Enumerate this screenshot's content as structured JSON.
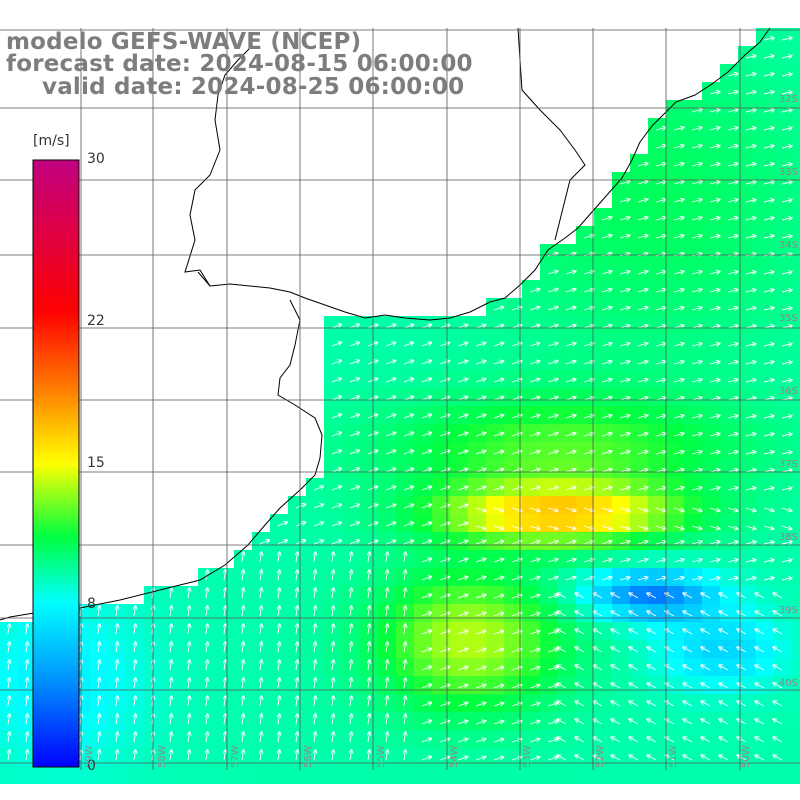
{
  "title": {
    "line1": "modelo GEFS-WAVE (NCEP)",
    "line2": "forecast date: 2024-08-15 06:00:00",
    "line3": "valid date: 2024-08-25 06:00:00"
  },
  "colorbar": {
    "unit": "[m/s]",
    "ticks": [
      {
        "label": "30",
        "value": 30
      },
      {
        "label": "22",
        "value": 22
      },
      {
        "label": "15",
        "value": 15
      },
      {
        "label": "8",
        "value": 8
      },
      {
        "label": "0",
        "value": 0
      }
    ],
    "min": 0,
    "max": 30
  },
  "colors": {
    "land": "#ffffff",
    "grid": "#555555",
    "coast": "#000000",
    "arrow": "#ffffff",
    "label": "#7d7d7d"
  },
  "lat_labels": [
    "32S",
    "33S",
    "34S",
    "35S",
    "36S",
    "37S",
    "38S",
    "39S",
    "40S"
  ],
  "lon_labels": [
    "59W",
    "58W",
    "57W",
    "56W",
    "55W",
    "54W",
    "53W",
    "52W",
    "51W",
    "50W"
  ]
}
